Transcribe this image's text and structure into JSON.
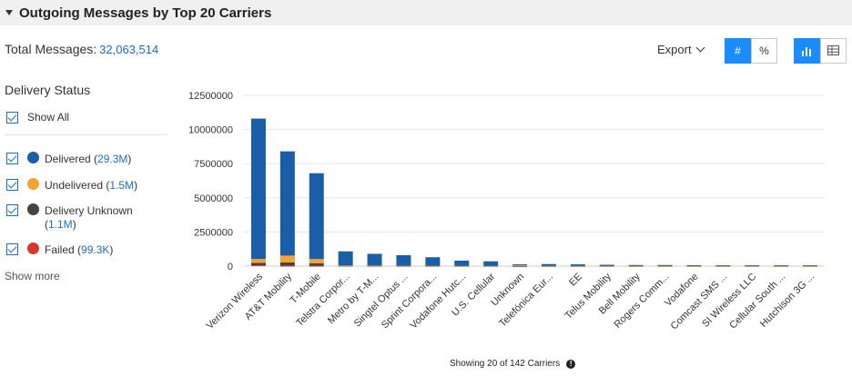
{
  "header": {
    "title": "Outgoing Messages by Top 20 Carriers"
  },
  "summary": {
    "label": "Total Messages:",
    "value": "32,063,514"
  },
  "toolbar": {
    "export_label": "Export",
    "count_toggle": "#",
    "percent_toggle": "%",
    "active_value_mode": "#",
    "active_view": "chart"
  },
  "delivery_status": {
    "title": "Delivery Status",
    "show_all": "Show All",
    "items": [
      {
        "label": "Delivered",
        "value": "29.3M",
        "color": "#1a5ea8"
      },
      {
        "label": "Undelivered",
        "value": "1.5M",
        "color": "#f5a330"
      },
      {
        "label": "Delivery Unknown",
        "value": "1.1M",
        "color": "#444444"
      },
      {
        "label": "Failed",
        "value": "99.3K",
        "color": "#d9372b"
      }
    ],
    "show_more": "Show more"
  },
  "footer": {
    "text": "Showing 20 of 142 Carriers"
  },
  "chart_data": {
    "type": "bar",
    "stacked": true,
    "ylim": [
      0,
      12500000
    ],
    "yticks": [
      "0",
      "2500000",
      "5000000",
      "7500000",
      "10000000",
      "12500000"
    ],
    "grid": true,
    "categories": [
      "Verizon Wireless",
      "AT&T Mobility",
      "T-Mobile",
      "Telstra Corpor...",
      "Metro by T-M...",
      "Singtel Optus ...",
      "Sprint Corpora...",
      "Vodafone Hutc...",
      "U.S. Cellular",
      "Unknown",
      "Telefónica Eur...",
      "EE",
      "Telus Mobility",
      "Bell Mobility",
      "Rogers Comm...",
      "Vodafone",
      "Comcast SMS ...",
      "SI Wireless LLC",
      "Cellular South ...",
      "Hutchison 3G ..."
    ],
    "series": [
      {
        "name": "Failed",
        "color": "#d9372b",
        "values": [
          60000,
          20000,
          15000,
          0,
          0,
          0,
          0,
          0,
          0,
          0,
          0,
          0,
          0,
          0,
          0,
          0,
          0,
          0,
          0,
          0
        ]
      },
      {
        "name": "Delivery Unknown",
        "color": "#444444",
        "values": [
          180000,
          250000,
          200000,
          20000,
          15000,
          5000,
          5000,
          3000,
          3000,
          3000,
          2000,
          2000,
          2000,
          2000,
          2000,
          2000,
          2000,
          2000,
          2000,
          2000
        ]
      },
      {
        "name": "Undelivered",
        "color": "#f5a330",
        "values": [
          280000,
          500000,
          300000,
          20000,
          20000,
          15000,
          15000,
          10000,
          10000,
          50000,
          10000,
          8000,
          8000,
          8000,
          8000,
          8000,
          8000,
          8000,
          8000,
          5000
        ]
      },
      {
        "name": "Delivered",
        "color": "#1a5ea8",
        "values": [
          10280000,
          7630000,
          6285000,
          1040000,
          865000,
          780000,
          630000,
          387000,
          337000,
          77000,
          138000,
          120000,
          90000,
          70000,
          70000,
          60000,
          50000,
          50000,
          50000,
          50000
        ]
      }
    ]
  }
}
